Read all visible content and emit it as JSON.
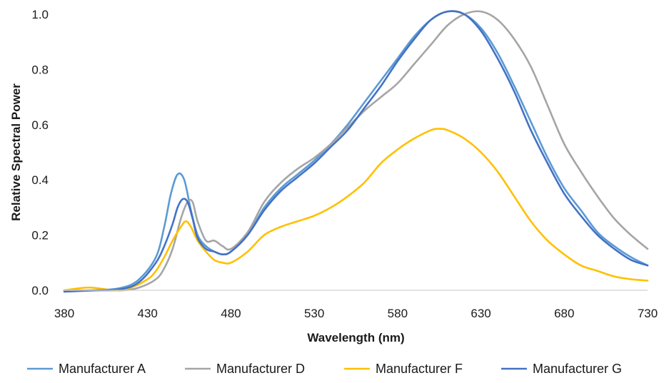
{
  "chart_data": {
    "type": "line",
    "xlabel": "Wavelength (nm)",
    "ylabel": "Relative Spectral Power",
    "xlim": [
      380,
      730
    ],
    "ylim": [
      0,
      1.0
    ],
    "x_ticks": [
      "380",
      "430",
      "480",
      "530",
      "580",
      "630",
      "680",
      "730"
    ],
    "y_ticks": [
      "0.0",
      "0.2",
      "0.4",
      "0.6",
      "0.8",
      "1.0"
    ],
    "grid": false,
    "legend_position": "bottom",
    "series": [
      {
        "name": "Manufacturer A",
        "color": "#5B9BD5",
        "x": [
          380,
          400,
          415,
          425,
          435,
          440,
          444,
          448,
          452,
          456,
          460,
          465,
          470,
          475,
          480,
          490,
          500,
          510,
          520,
          530,
          540,
          550,
          560,
          570,
          580,
          590,
          600,
          610,
          620,
          630,
          640,
          650,
          660,
          670,
          680,
          690,
          700,
          710,
          720,
          730
        ],
        "y": [
          0.0,
          0.0,
          0.01,
          0.04,
          0.12,
          0.23,
          0.35,
          0.42,
          0.4,
          0.29,
          0.2,
          0.16,
          0.14,
          0.13,
          0.14,
          0.2,
          0.3,
          0.37,
          0.42,
          0.47,
          0.53,
          0.6,
          0.68,
          0.76,
          0.84,
          0.92,
          0.98,
          1.01,
          1.0,
          0.95,
          0.86,
          0.74,
          0.61,
          0.48,
          0.37,
          0.29,
          0.21,
          0.16,
          0.12,
          0.09
        ]
      },
      {
        "name": "Manufacturer D",
        "color": "#A5A5A5",
        "x": [
          380,
          400,
          415,
          425,
          435,
          440,
          445,
          450,
          454,
          457,
          460,
          465,
          470,
          475,
          480,
          490,
          500,
          510,
          520,
          530,
          540,
          550,
          560,
          570,
          580,
          590,
          600,
          610,
          620,
          630,
          640,
          650,
          660,
          670,
          680,
          690,
          700,
          710,
          720,
          730
        ],
        "y": [
          0.0,
          0.0,
          0.0,
          0.01,
          0.04,
          0.08,
          0.15,
          0.26,
          0.32,
          0.32,
          0.25,
          0.18,
          0.18,
          0.16,
          0.15,
          0.21,
          0.32,
          0.39,
          0.44,
          0.48,
          0.53,
          0.59,
          0.65,
          0.7,
          0.75,
          0.82,
          0.89,
          0.96,
          1.0,
          1.01,
          0.98,
          0.91,
          0.81,
          0.67,
          0.53,
          0.43,
          0.34,
          0.26,
          0.2,
          0.15
        ]
      },
      {
        "name": "Manufacturer F",
        "color": "#FFC000",
        "x": [
          380,
          395,
          410,
          420,
          430,
          435,
          440,
          445,
          450,
          453,
          456,
          460,
          465,
          470,
          475,
          480,
          490,
          500,
          510,
          520,
          530,
          540,
          550,
          560,
          570,
          580,
          590,
          600,
          605,
          610,
          620,
          630,
          640,
          650,
          660,
          670,
          680,
          690,
          700,
          710,
          720,
          730
        ],
        "y": [
          0.0,
          0.01,
          0.0,
          0.01,
          0.04,
          0.07,
          0.12,
          0.18,
          0.23,
          0.25,
          0.23,
          0.18,
          0.14,
          0.11,
          0.1,
          0.1,
          0.14,
          0.2,
          0.23,
          0.25,
          0.27,
          0.3,
          0.34,
          0.39,
          0.46,
          0.51,
          0.55,
          0.58,
          0.585,
          0.58,
          0.55,
          0.5,
          0.43,
          0.34,
          0.25,
          0.18,
          0.13,
          0.09,
          0.07,
          0.05,
          0.04,
          0.035
        ]
      },
      {
        "name": "Manufacturer G",
        "color": "#4472C4",
        "x": [
          380,
          400,
          415,
          425,
          435,
          440,
          445,
          448,
          451,
          454,
          457,
          460,
          465,
          470,
          475,
          480,
          490,
          500,
          510,
          520,
          530,
          540,
          550,
          560,
          570,
          580,
          590,
          600,
          610,
          620,
          630,
          640,
          650,
          660,
          670,
          680,
          690,
          700,
          710,
          720,
          730
        ],
        "y": [
          -0.005,
          0.0,
          0.005,
          0.03,
          0.1,
          0.16,
          0.24,
          0.3,
          0.33,
          0.32,
          0.26,
          0.19,
          0.15,
          0.14,
          0.13,
          0.14,
          0.2,
          0.29,
          0.36,
          0.41,
          0.46,
          0.52,
          0.58,
          0.66,
          0.74,
          0.83,
          0.91,
          0.98,
          1.01,
          1.0,
          0.94,
          0.84,
          0.72,
          0.58,
          0.46,
          0.35,
          0.27,
          0.2,
          0.15,
          0.11,
          0.09
        ]
      }
    ]
  }
}
